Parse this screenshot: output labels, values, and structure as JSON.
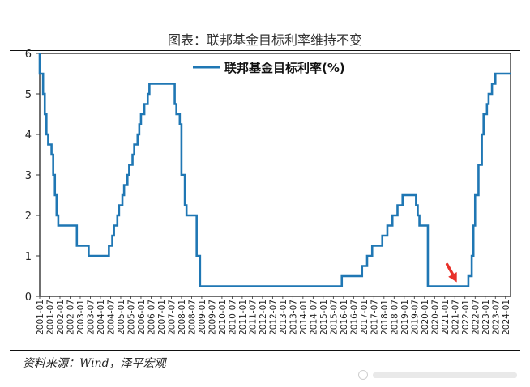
{
  "header": {
    "title": "图表：联邦基金目标利率维持不变"
  },
  "footer": {
    "source": "资料来源：Wind，泽平宏观"
  },
  "colors": {
    "line": "#1f77b4",
    "axis": "#333333",
    "arrow": "#e8312a"
  },
  "chart_data": {
    "type": "line",
    "legend": {
      "label": "联邦基金目标利率(%)",
      "position": "top-center"
    },
    "yticks": [
      0,
      1,
      2,
      3,
      4,
      5,
      6
    ],
    "ylim": [
      0,
      6
    ],
    "xlim": [
      "2001-01",
      "2024-04"
    ],
    "grid": false,
    "xticks": [
      "2001-01",
      "2001-07",
      "2002-01",
      "2002-07",
      "2003-01",
      "2003-07",
      "2004-01",
      "2004-07",
      "2005-01",
      "2005-07",
      "2006-01",
      "2006-07",
      "2007-01",
      "2007-07",
      "2008-01",
      "2008-07",
      "2009-01",
      "2009-07",
      "2010-01",
      "2010-07",
      "2011-01",
      "2011-07",
      "2012-01",
      "2012-07",
      "2013-01",
      "2013-07",
      "2014-01",
      "2014-07",
      "2015-01",
      "2015-07",
      "2016-01",
      "2016-07",
      "2017-01",
      "2017-07",
      "2018-01",
      "2018-07",
      "2019-01",
      "2019-07",
      "2020-01",
      "2020-07",
      "2021-01",
      "2021-07",
      "2022-01",
      "2022-07",
      "2023-01",
      "2023-07",
      "2024-01"
    ],
    "series": [
      {
        "name": "联邦基金目标利率(%)",
        "steps": [
          [
            "2001-01",
            6.0
          ],
          [
            "2001-01",
            5.5
          ],
          [
            "2001-03",
            5.0
          ],
          [
            "2001-04",
            4.5
          ],
          [
            "2001-05",
            4.0
          ],
          [
            "2001-06",
            3.75
          ],
          [
            "2001-08",
            3.5
          ],
          [
            "2001-09",
            3.0
          ],
          [
            "2001-10",
            2.5
          ],
          [
            "2001-11",
            2.0
          ],
          [
            "2001-12",
            1.75
          ],
          [
            "2002-11",
            1.25
          ],
          [
            "2003-06",
            1.0
          ],
          [
            "2004-06",
            1.25
          ],
          [
            "2004-08",
            1.5
          ],
          [
            "2004-09",
            1.75
          ],
          [
            "2004-11",
            2.0
          ],
          [
            "2004-12",
            2.25
          ],
          [
            "2005-02",
            2.5
          ],
          [
            "2005-03",
            2.75
          ],
          [
            "2005-05",
            3.0
          ],
          [
            "2005-06",
            3.25
          ],
          [
            "2005-08",
            3.5
          ],
          [
            "2005-09",
            3.75
          ],
          [
            "2005-11",
            4.0
          ],
          [
            "2005-12",
            4.25
          ],
          [
            "2006-01",
            4.5
          ],
          [
            "2006-03",
            4.75
          ],
          [
            "2006-05",
            5.0
          ],
          [
            "2006-06",
            5.25
          ],
          [
            "2007-09",
            4.75
          ],
          [
            "2007-10",
            4.5
          ],
          [
            "2007-12",
            4.25
          ],
          [
            "2008-01",
            3.0
          ],
          [
            "2008-03",
            2.25
          ],
          [
            "2008-04",
            2.0
          ],
          [
            "2008-10",
            1.0
          ],
          [
            "2008-12",
            0.25
          ],
          [
            "2015-12",
            0.5
          ],
          [
            "2016-12",
            0.75
          ],
          [
            "2017-03",
            1.0
          ],
          [
            "2017-06",
            1.25
          ],
          [
            "2017-12",
            1.5
          ],
          [
            "2018-03",
            1.75
          ],
          [
            "2018-06",
            2.0
          ],
          [
            "2018-09",
            2.25
          ],
          [
            "2018-12",
            2.5
          ],
          [
            "2019-08",
            2.25
          ],
          [
            "2019-09",
            2.0
          ],
          [
            "2019-10",
            1.75
          ],
          [
            "2020-03",
            0.25
          ],
          [
            "2022-03",
            0.5
          ],
          [
            "2022-05",
            1.0
          ],
          [
            "2022-06",
            1.75
          ],
          [
            "2022-07",
            2.5
          ],
          [
            "2022-09",
            3.25
          ],
          [
            "2022-11",
            4.0
          ],
          [
            "2022-12",
            4.5
          ],
          [
            "2023-02",
            4.75
          ],
          [
            "2023-03",
            5.0
          ],
          [
            "2023-05",
            5.25
          ],
          [
            "2023-07",
            5.5
          ],
          [
            "2024-04",
            5.5
          ]
        ]
      }
    ],
    "annotations": [
      {
        "type": "arrow",
        "target": [
          "2021-12",
          0.25
        ]
      }
    ]
  }
}
